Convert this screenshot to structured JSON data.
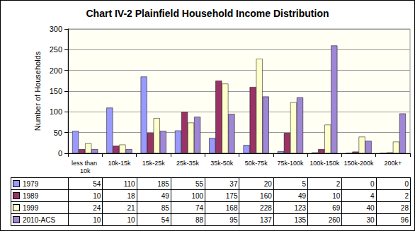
{
  "chart_data": {
    "type": "bar",
    "title": "Chart IV-2 Plainfield Household Income Distribution",
    "ylabel": "Number of Households",
    "categories": [
      "less than 10k",
      "10k-15k",
      "15k-25k",
      "25k-35k",
      "35k-50k",
      "50k-75k",
      "75k-100k",
      "100k-150k",
      "150k-200k",
      "200k+"
    ],
    "series": [
      {
        "name": "1979",
        "color": "#9999ff",
        "values": [
          54,
          110,
          185,
          55,
          37,
          20,
          5,
          2,
          0,
          0
        ]
      },
      {
        "name": "1989",
        "color": "#993366",
        "values": [
          10,
          18,
          49,
          100,
          175,
          160,
          49,
          10,
          4,
          2
        ]
      },
      {
        "name": "1999",
        "color": "#ffffcc",
        "values": [
          24,
          21,
          85,
          74,
          168,
          228,
          123,
          69,
          40,
          28
        ]
      },
      {
        "name": "2010-ACS",
        "color": "#9f86d6",
        "values": [
          10,
          10,
          54,
          88,
          95,
          137,
          135,
          260,
          30,
          96
        ]
      }
    ],
    "ylim": [
      0,
      300
    ],
    "yticks": [
      0,
      50,
      100,
      150,
      200,
      250,
      300
    ],
    "grid": true
  }
}
